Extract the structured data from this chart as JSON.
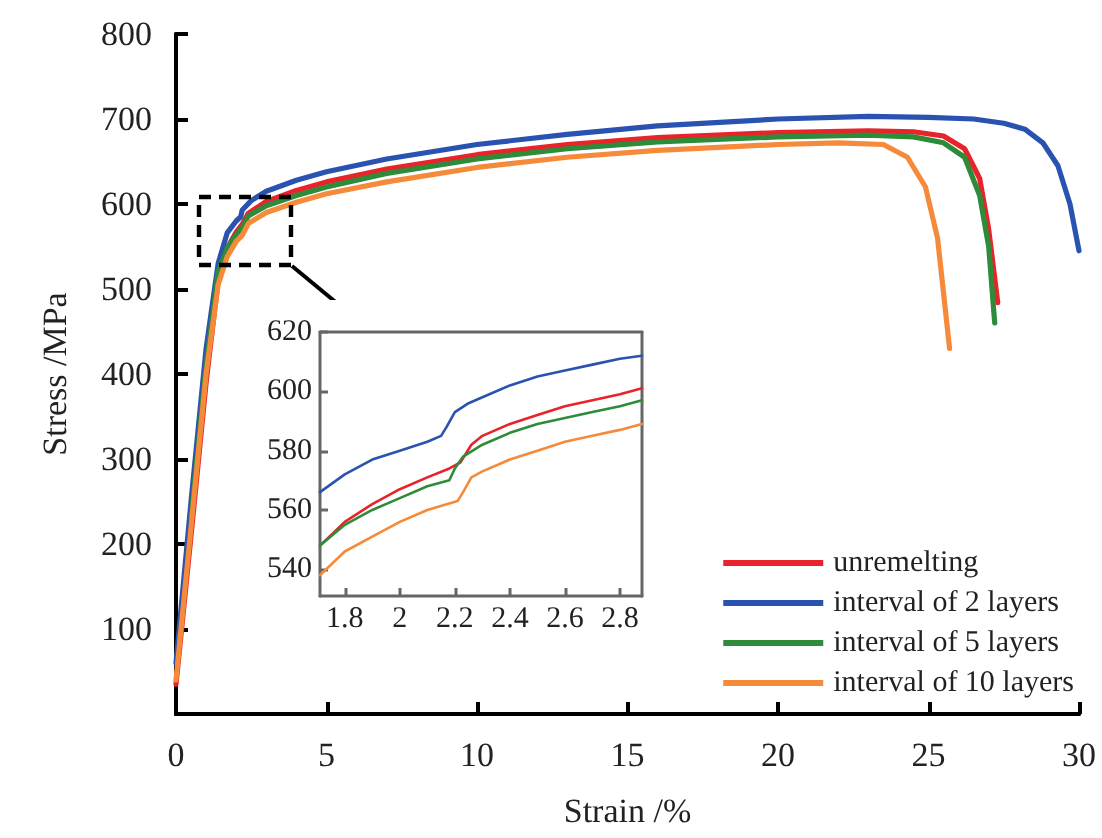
{
  "chart_data": [
    {
      "type": "line",
      "xlabel": "Strain /%",
      "ylabel": "Stress /MPa",
      "xlim": [
        0,
        30
      ],
      "ylim": [
        0,
        800
      ],
      "xticks": [
        0,
        5,
        10,
        15,
        20,
        25,
        30
      ],
      "yticks": [
        100,
        200,
        300,
        400,
        500,
        600,
        700,
        800
      ],
      "grid": false,
      "legend": "bottom right",
      "marker": "none",
      "line_style": "solid",
      "series": [
        {
          "name": "unremelting",
          "color": "#e8242a",
          "x": [
            0,
            0.5,
            1.0,
            1.4,
            1.7,
            2.0,
            2.2,
            2.4,
            3,
            4,
            5,
            7,
            10,
            13,
            16,
            20,
            23,
            24.5,
            25.5,
            26.2,
            26.7,
            27,
            27.3
          ],
          "values": [
            35,
            210,
            390,
            510,
            548,
            567,
            576,
            589,
            603,
            616,
            626,
            641,
            658,
            670,
            678,
            684,
            686,
            685,
            680,
            665,
            630,
            570,
            484
          ]
        },
        {
          "name": "interval of 2 layers",
          "color": "#2a52b0",
          "x": [
            0,
            0.5,
            1.0,
            1.4,
            1.7,
            2.0,
            2.15,
            2.2,
            2.5,
            3,
            4,
            5,
            7,
            10,
            13,
            16,
            20,
            23,
            25,
            26.5,
            27.5,
            28.2,
            28.8,
            29.3,
            29.7,
            30
          ],
          "values": [
            60,
            250,
            430,
            530,
            566,
            580,
            585,
            593,
            604,
            615,
            628,
            638,
            653,
            670,
            682,
            692,
            700,
            703,
            702,
            700,
            695,
            688,
            672,
            645,
            600,
            545
          ]
        },
        {
          "name": "interval of 5 layers",
          "color": "#2e8b3a",
          "x": [
            0.5,
            1.0,
            1.4,
            1.7,
            2.0,
            2.2,
            2.4,
            3,
            4,
            5,
            7,
            10,
            13,
            16,
            20,
            23,
            24.5,
            25.5,
            26.2,
            26.7,
            27,
            27.2
          ],
          "values": [
            230,
            410,
            520,
            548,
            564,
            572,
            586,
            598,
            610,
            620,
            636,
            653,
            665,
            673,
            679,
            681,
            679,
            672,
            655,
            610,
            550,
            460
          ]
        },
        {
          "name": "interval of 10 layers",
          "color": "#f58a3a",
          "x": [
            0,
            0.5,
            1.0,
            1.4,
            1.7,
            2.0,
            2.2,
            2.4,
            3,
            4,
            5,
            7,
            10,
            13,
            16,
            20,
            22,
            23.5,
            24.3,
            24.9,
            25.3,
            25.7
          ],
          "values": [
            40,
            220,
            400,
            505,
            538,
            556,
            563,
            577,
            590,
            602,
            612,
            626,
            643,
            655,
            663,
            670,
            672,
            670,
            655,
            620,
            560,
            430
          ]
        }
      ]
    },
    {
      "type": "line",
      "xlim": [
        1.71,
        2.88
      ],
      "ylim": [
        531,
        620
      ],
      "xticks": [
        1.8,
        2.0,
        2.2,
        2.4,
        2.6,
        2.8
      ],
      "yticks": [
        540,
        560,
        580,
        600,
        620
      ],
      "grid": false,
      "legend": false,
      "marker": "none",
      "line_style": "solid",
      "series": [
        {
          "color": "#e8242a",
          "x": [
            1.71,
            1.8,
            1.9,
            2.0,
            2.1,
            2.18,
            2.22,
            2.26,
            2.3,
            2.4,
            2.5,
            2.6,
            2.7,
            2.8,
            2.88
          ],
          "values": [
            548,
            556,
            562,
            567,
            571,
            574,
            576,
            582,
            585,
            589,
            592,
            595,
            597,
            599,
            601
          ]
        },
        {
          "color": "#2a52b0",
          "x": [
            1.71,
            1.8,
            1.9,
            2.0,
            2.1,
            2.15,
            2.17,
            2.2,
            2.25,
            2.3,
            2.4,
            2.5,
            2.6,
            2.7,
            2.8,
            2.88
          ],
          "values": [
            566,
            572,
            577,
            580,
            583,
            585,
            588,
            593,
            596,
            598,
            602,
            605,
            607,
            609,
            611,
            612
          ]
        },
        {
          "color": "#2e8b3a",
          "x": [
            1.71,
            1.8,
            1.9,
            2.0,
            2.1,
            2.18,
            2.2,
            2.23,
            2.3,
            2.4,
            2.5,
            2.6,
            2.7,
            2.8,
            2.88
          ],
          "values": [
            548,
            555,
            560,
            564,
            568,
            570,
            574,
            578,
            582,
            586,
            589,
            591,
            593,
            595,
            597
          ]
        },
        {
          "color": "#f58a3a",
          "x": [
            1.71,
            1.8,
            1.9,
            2.0,
            2.1,
            2.21,
            2.23,
            2.26,
            2.3,
            2.4,
            2.5,
            2.6,
            2.7,
            2.8,
            2.88
          ],
          "values": [
            538,
            546,
            551,
            556,
            560,
            563,
            566,
            571,
            573,
            577,
            580,
            583,
            585,
            587,
            589
          ]
        }
      ]
    }
  ]
}
